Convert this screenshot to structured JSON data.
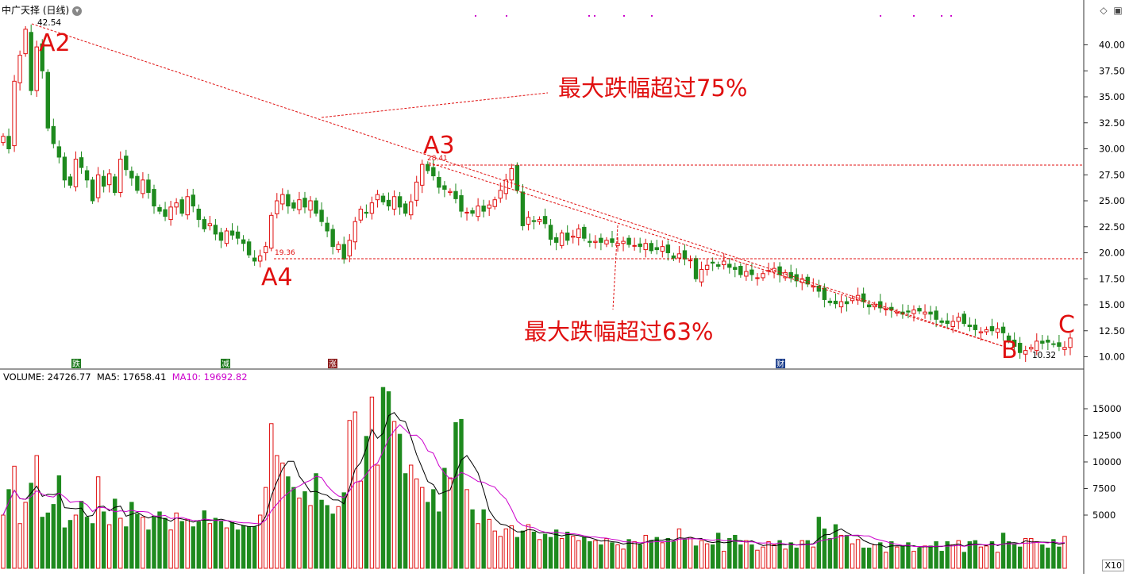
{
  "title": "中广天择 (日线)",
  "volume_legend": {
    "volume": "VOLUME: 24726.77",
    "ma5": "MA5: 17658.41",
    "ma10": "MA10: 19692.82"
  },
  "x10_label": "X10",
  "annotations": {
    "a2": "A2",
    "a3": "A3",
    "a4": "A4",
    "b": "B",
    "c": "C",
    "drop1": "最大跌幅超过75%",
    "drop2": "最大跌幅超过63%",
    "hi_price": "42.54",
    "a3_price": "28.41",
    "a4_price": "19.36",
    "low_price": "10.32"
  },
  "event_markers": [
    {
      "label": "跌",
      "color": "#1e7a1e"
    },
    {
      "label": "减",
      "color": "#1e7a1e"
    },
    {
      "label": "涨",
      "color": "#8b1a1a"
    },
    {
      "label": "财",
      "color": "#1a3d8b"
    }
  ],
  "colors": {
    "up": "#e01010",
    "down": "#1e8a1e",
    "annot": "#e01010",
    "ma5": "#000000",
    "ma10": "#cc00cc"
  },
  "chart_data": [
    {
      "type": "candlestick",
      "title": "中广天择 (日线)",
      "ylim": [
        9,
        43
      ],
      "yticks": [
        "10.00",
        "12.50",
        "15.00",
        "17.50",
        "20.00",
        "22.50",
        "25.00",
        "27.50",
        "30.00",
        "32.50",
        "35.00",
        "37.50",
        "40.00"
      ],
      "close": [
        31.2,
        30.0,
        36.5,
        39.0,
        41.5,
        35.6,
        39.8,
        37.5,
        32.0,
        30.5,
        29.2,
        27.0,
        26.5,
        29.0,
        28.2,
        27.0,
        25.0,
        27.5,
        26.4,
        27.6,
        25.8,
        29.0,
        28.0,
        27.2,
        26.0,
        27.0,
        25.8,
        24.5,
        24.0,
        23.5,
        24.4,
        24.8,
        23.8,
        25.4,
        24.5,
        23.2,
        22.3,
        22.8,
        21.8,
        21.2,
        22.1,
        21.7,
        21.4,
        20.9,
        19.8,
        19.2,
        19.7,
        20.6,
        23.6,
        25.0,
        25.6,
        24.5,
        24.3,
        25.1,
        24.4,
        25.0,
        23.8,
        23.0,
        22.1,
        20.6,
        20.8,
        19.4,
        21.2,
        23.0,
        24.2,
        23.8,
        24.8,
        25.6,
        24.9,
        24.5,
        25.4,
        24.4,
        23.8,
        24.9,
        26.8,
        28.5,
        27.9,
        27.4,
        26.3,
        26.1,
        25.9,
        25.2,
        24.0,
        23.9,
        23.8,
        24.5,
        24.0,
        24.6,
        25.1,
        26.0,
        27.0,
        28.1,
        26.0,
        22.6,
        23.4,
        23.0,
        23.2,
        22.8,
        21.3,
        21.0,
        21.9,
        21.2,
        21.6,
        22.3,
        21.4,
        21.0,
        21.1,
        21.0,
        21.2,
        21.0,
        20.9,
        21.1,
        20.8,
        20.7,
        20.6,
        20.9,
        20.2,
        20.3,
        20.6,
        20.0,
        19.5,
        19.9,
        19.4,
        19.3,
        17.5,
        18.4,
        18.8,
        19.0,
        18.7,
        19.2,
        18.6,
        18.4,
        17.9,
        18.2,
        17.9,
        17.6,
        18.0,
        18.3,
        18.5,
        17.9,
        18.1,
        17.6,
        17.3,
        17.5,
        17.0,
        16.8,
        16.3,
        15.5,
        15.2,
        15.1,
        15.3,
        15.1,
        15.6,
        15.9,
        15.3,
        14.8,
        15.0,
        14.7,
        14.6,
        14.5,
        14.3,
        14.1,
        14.3,
        14.5,
        14.4,
        14.3,
        14.1,
        13.6,
        13.3,
        13.2,
        13.4,
        13.8,
        13.2,
        12.9,
        12.6,
        12.4,
        12.6,
        12.5,
        12.7,
        12.3,
        11.6,
        11.0,
        10.4,
        10.6,
        10.9,
        11.5,
        11.3,
        11.4,
        11.2,
        11.0,
        10.9,
        11.8
      ]
    },
    {
      "type": "bar",
      "title": "VOLUME",
      "ylim": [
        0,
        17500
      ],
      "yticks": [
        "5000",
        "7500",
        "10000",
        "12500",
        "15000"
      ],
      "values": [
        5000,
        7400,
        9600,
        4200,
        6200,
        8000,
        10600,
        4800,
        5200,
        6000,
        8700,
        3800,
        4500,
        5000,
        6300,
        4800,
        4200,
        8600,
        5300,
        4100,
        6500,
        4700,
        3900,
        6200,
        5100,
        4800,
        3600,
        4900,
        5300,
        4700,
        3600,
        5200,
        4400,
        4600,
        3900,
        4400,
        5400,
        4200,
        4700,
        4400,
        3800,
        4300,
        3600,
        4000,
        3900,
        3900,
        5000,
        7600,
        13600,
        10600,
        9900,
        8600,
        7600,
        6600,
        7200,
        5900,
        8900,
        6400,
        5900,
        5100,
        5800,
        7100,
        13900,
        14700,
        8200,
        12400,
        16100,
        9700,
        17000,
        16600,
        13800,
        12600,
        8900,
        9700,
        8400,
        7600,
        6200,
        7400,
        5300,
        9400,
        8500,
        13700,
        14000,
        7400,
        5500,
        4200,
        5500,
        4600,
        3500,
        3000,
        3700,
        4000,
        2900,
        3500,
        4100,
        3400,
        2700,
        3200,
        2900,
        3600,
        2800,
        3400,
        3000,
        2600,
        2900,
        2500,
        2600,
        2200,
        2800,
        2400,
        2200,
        1800,
        2700,
        2500,
        2200,
        3100,
        2600,
        2900,
        2400,
        2800,
        2500,
        3700,
        2700,
        2900,
        2100,
        2600,
        2300,
        2200,
        3300,
        1600,
        2800,
        3100,
        2200,
        2600,
        2200,
        1700,
        2000,
        2500,
        2200,
        2600,
        1800,
        2400,
        1900,
        2600,
        2600,
        2000,
        4800,
        3700,
        2800,
        4100,
        3100,
        3100,
        2300,
        2700,
        1900,
        1900,
        2200,
        2400,
        1500,
        2500,
        2000,
        2100,
        2400,
        1600,
        1900,
        2100,
        2100,
        2500,
        1600,
        2500,
        2200,
        2600,
        1500,
        2500,
        2600,
        2000,
        2100,
        2500,
        1500,
        3300,
        2500,
        2300,
        2000,
        2800,
        2800,
        2500,
        2200,
        1900,
        2700,
        2000,
        3000
      ]
    }
  ]
}
